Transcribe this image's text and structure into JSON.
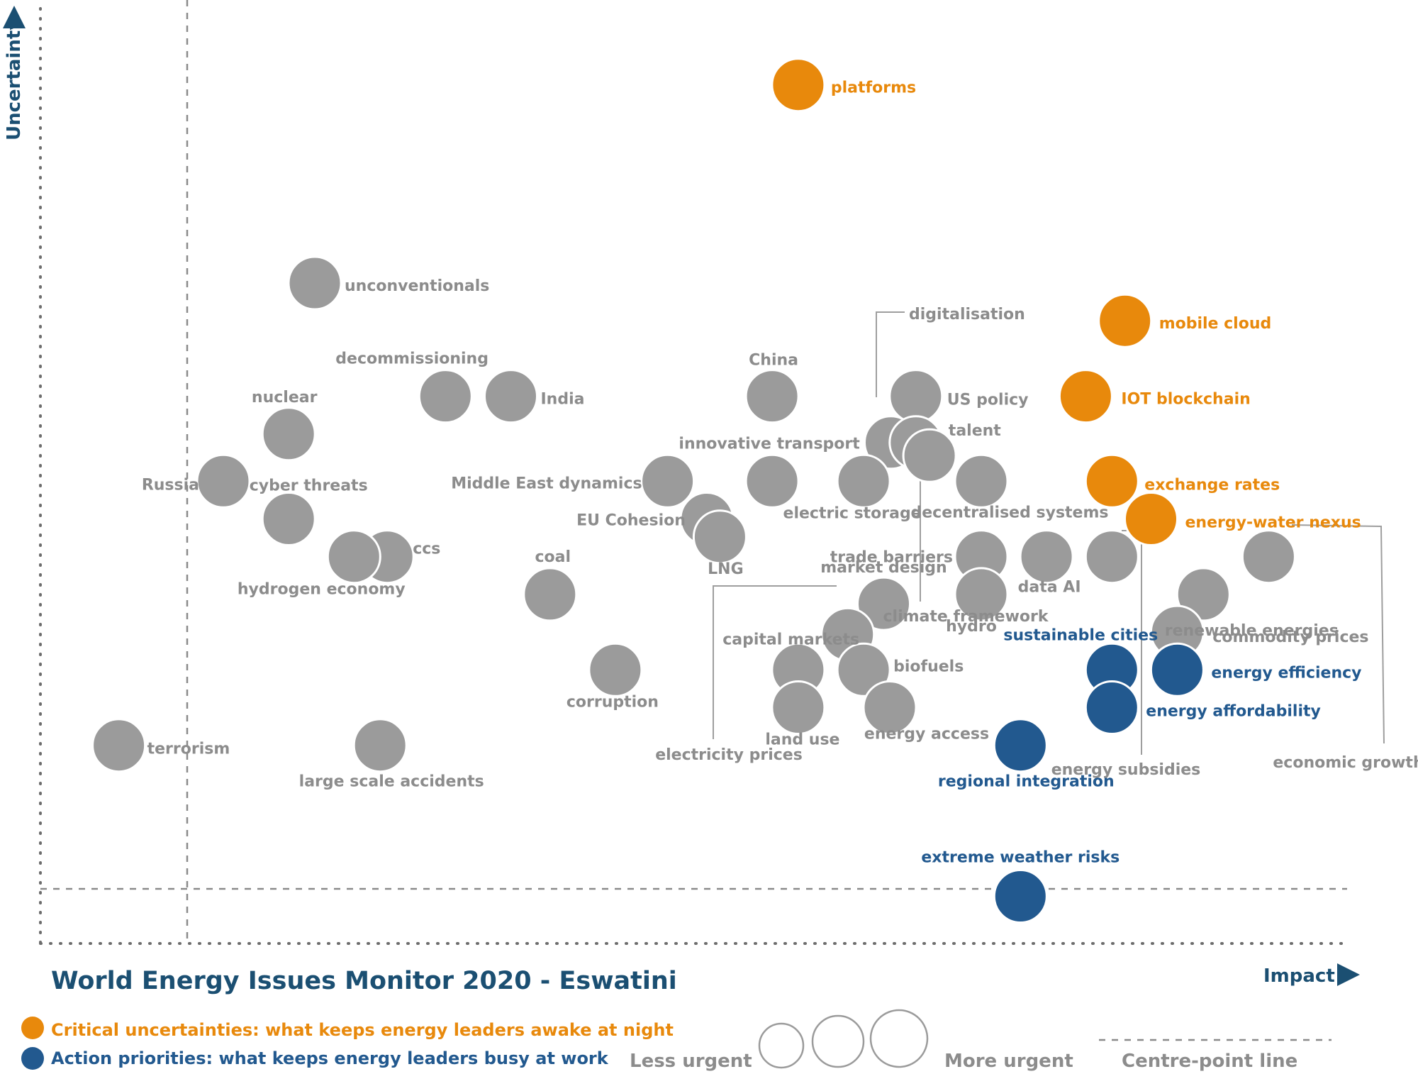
{
  "chart_data": {
    "type": "scatter",
    "title": "World Energy Issues Monitor 2020 - Eswatini",
    "xlabel": "Impact",
    "ylabel": "Uncertainty",
    "grid": false,
    "colors": {
      "critical": "#e8890c",
      "action": "#22598f",
      "neutral": "#9b9b9b",
      "axis": "#1b4f72",
      "title": "#1b4f72",
      "label_grey": "#8c8c8c"
    },
    "legend": {
      "critical": "Critical uncertainties: what keeps energy leaders awake at night",
      "action": "Action priorities: what keeps energy leaders busy at work",
      "less_urgent": "Less urgent",
      "more_urgent": "More urgent",
      "centre_line": "Centre-point  line"
    },
    "points": [
      {
        "label": "platforms",
        "x": 0.58,
        "y": 0.91,
        "cat": "critical"
      },
      {
        "label": "unconventionals",
        "x": 0.21,
        "y": 0.7,
        "cat": "neutral"
      },
      {
        "label": "digitalisation",
        "x": 0.64,
        "y": 0.54,
        "cat": "neutral"
      },
      {
        "label": "mobile cloud",
        "x": 0.83,
        "y": 0.66,
        "cat": "critical"
      },
      {
        "label": "decommissioning",
        "x": 0.31,
        "y": 0.58,
        "cat": "neutral"
      },
      {
        "label": "India",
        "x": 0.36,
        "y": 0.58,
        "cat": "neutral"
      },
      {
        "label": "China",
        "x": 0.56,
        "y": 0.58,
        "cat": "neutral"
      },
      {
        "label": "US policy",
        "x": 0.67,
        "y": 0.58,
        "cat": "neutral"
      },
      {
        "label": "IOT blockchain",
        "x": 0.8,
        "y": 0.58,
        "cat": "critical"
      },
      {
        "label": "nuclear",
        "x": 0.19,
        "y": 0.54,
        "cat": "neutral"
      },
      {
        "label": "talent",
        "x": 0.67,
        "y": 0.54,
        "cat": "neutral"
      },
      {
        "label": "innovative transport",
        "x": 0.56,
        "y": 0.49,
        "cat": "neutral"
      },
      {
        "label": "Russia",
        "x": 0.14,
        "y": 0.49,
        "cat": "neutral"
      },
      {
        "label": "cyber threats",
        "x": 0.19,
        "y": 0.45,
        "cat": "neutral"
      },
      {
        "label": "Middle East dynamics",
        "x": 0.48,
        "y": 0.49,
        "cat": "neutral"
      },
      {
        "label": "electric storage",
        "x": 0.63,
        "y": 0.49,
        "cat": "neutral"
      },
      {
        "label": "climate framework",
        "x": 0.7,
        "y": 0.49,
        "cat": "neutral"
      },
      {
        "label": "decentralised systems",
        "x": 0.72,
        "y": 0.49,
        "cat": "neutral"
      },
      {
        "label": "exchange rates",
        "x": 0.82,
        "y": 0.49,
        "cat": "critical"
      },
      {
        "label": "EU Cohesion",
        "x": 0.51,
        "y": 0.45,
        "cat": "neutral"
      },
      {
        "label": "LNG",
        "x": 0.52,
        "y": 0.44,
        "cat": "neutral"
      },
      {
        "label": "energy-water nexus",
        "x": 0.85,
        "y": 0.45,
        "cat": "critical"
      },
      {
        "label": "ccs",
        "x": 0.26,
        "y": 0.41,
        "cat": "neutral"
      },
      {
        "label": "hydrogen economy",
        "x": 0.24,
        "y": 0.41,
        "cat": "neutral"
      },
      {
        "label": "trade barriers",
        "x": 0.72,
        "y": 0.41,
        "cat": "neutral"
      },
      {
        "label": "data AI",
        "x": 0.77,
        "y": 0.41,
        "cat": "neutral"
      },
      {
        "label": "energy subsidies",
        "x": 0.82,
        "y": 0.41,
        "cat": "neutral"
      },
      {
        "label": "economic growth",
        "x": 0.94,
        "y": 0.41,
        "cat": "neutral"
      },
      {
        "label": "coal",
        "x": 0.39,
        "y": 0.37,
        "cat": "neutral"
      },
      {
        "label": "market design",
        "x": 0.64,
        "y": 0.33,
        "cat": "neutral"
      },
      {
        "label": "hydro",
        "x": 0.72,
        "y": 0.37,
        "cat": "neutral"
      },
      {
        "label": "renewable energies",
        "x": 0.89,
        "y": 0.37,
        "cat": "neutral"
      },
      {
        "label": "capital markets",
        "x": 0.62,
        "y": 0.32,
        "cat": "neutral"
      },
      {
        "label": "commodity prices",
        "x": 0.87,
        "y": 0.33,
        "cat": "neutral"
      },
      {
        "label": "biofuels",
        "x": 0.63,
        "y": 0.29,
        "cat": "neutral"
      },
      {
        "label": "electricity prices",
        "x": 0.58,
        "y": 0.29,
        "cat": "neutral"
      },
      {
        "label": "corruption",
        "x": 0.44,
        "y": 0.29,
        "cat": "neutral"
      },
      {
        "label": "sustainable cities",
        "x": 0.82,
        "y": 0.29,
        "cat": "action"
      },
      {
        "label": "energy efficiency",
        "x": 0.87,
        "y": 0.29,
        "cat": "action"
      },
      {
        "label": "energy affordability",
        "x": 0.82,
        "y": 0.25,
        "cat": "action"
      },
      {
        "label": "land use",
        "x": 0.58,
        "y": 0.25,
        "cat": "neutral"
      },
      {
        "label": "energy access",
        "x": 0.65,
        "y": 0.25,
        "cat": "neutral"
      },
      {
        "label": "terrorism",
        "x": 0.06,
        "y": 0.21,
        "cat": "neutral"
      },
      {
        "label": "large scale accidents",
        "x": 0.26,
        "y": 0.21,
        "cat": "neutral"
      },
      {
        "label": "regional integration",
        "x": 0.75,
        "y": 0.21,
        "cat": "action"
      },
      {
        "label": "extreme weather risks",
        "x": 0.75,
        "y": 0.05,
        "cat": "action"
      }
    ]
  }
}
